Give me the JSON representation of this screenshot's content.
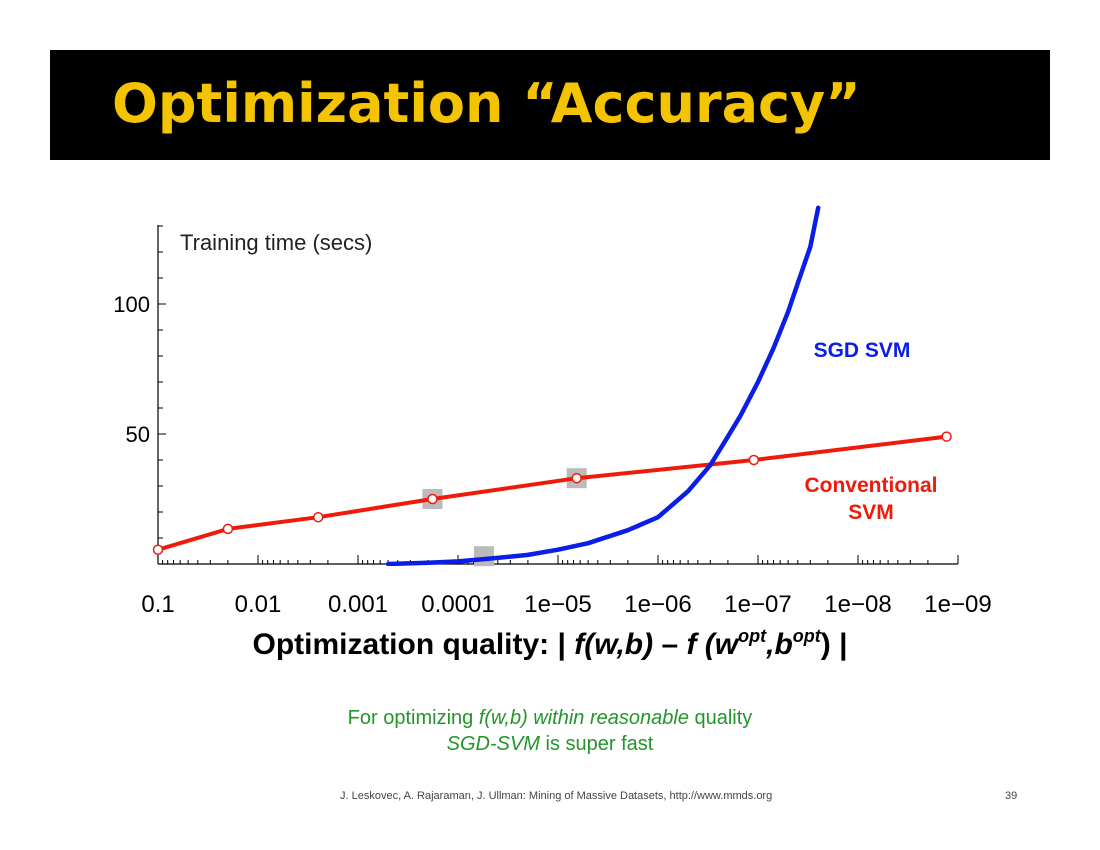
{
  "slide": {
    "title": "Optimization “Accuracy”",
    "xaxis_title": {
      "prefix": "Optimization quality: | ",
      "f1": "f(w,b)",
      "dash": " – ",
      "f2": "f (w",
      "sup1": "opt",
      "comma": ",b",
      "sup2": "opt",
      "close": ") |"
    },
    "caption": {
      "l1_a": "For optimizing ",
      "l1_b": "f(w,b) within reasonable",
      "l1_c": " quality",
      "l2_a": "SGD-SVM",
      "l2_b": " is super fast"
    },
    "footer": "J. Leskovec, A. Rajaraman, J. Ullman: Mining of Massive Datasets, http://www.mmds.org",
    "page_number": "39"
  },
  "colors": {
    "title": "#f5c400",
    "sgd": "#0a1ee6",
    "conventional": "#f01a0a",
    "caption": "#22962a"
  },
  "chart_data": {
    "type": "line",
    "title": "",
    "ylabel": "Training time (secs)",
    "xlabel": "Optimization quality: | f(w,b) – f (wopt,bopt) |",
    "x_scale": "log, reversed",
    "x_ticks": [
      "0.1",
      "0.01",
      "0.001",
      "0.0001",
      "1e−05",
      "1e−06",
      "1e−07",
      "1e−08",
      "1e−09"
    ],
    "x_tick_values": [
      0.1,
      0.01,
      0.001,
      0.0001,
      1e-05,
      1e-06,
      1e-07,
      1e-08,
      1e-09
    ],
    "y_ticks": [
      "50",
      "100"
    ],
    "y_tick_values": [
      50,
      100
    ],
    "ylim": [
      0,
      130
    ],
    "grid": false,
    "series": [
      {
        "name": "Conventional SVM",
        "label_lines": [
          "Conventional",
          "SVM"
        ],
        "color": "#f01a0a",
        "marker": "open-circle",
        "x": [
          0.1,
          0.02,
          0.0025,
          0.00018,
          6.5e-06,
          1.1e-07,
          1.3e-09
        ],
        "y": [
          5.5,
          13.5,
          18,
          25,
          33,
          40,
          49
        ]
      },
      {
        "name": "SGD SVM",
        "label_lines": [
          "SGD SVM"
        ],
        "color": "#0a1ee6",
        "marker": "none",
        "x": [
          0.0005,
          0.0002,
          0.0001,
          5e-05,
          2e-05,
          1e-05,
          5e-06,
          2e-06,
          1e-06,
          5e-07,
          3e-07,
          2e-07,
          1.5e-07,
          1e-07,
          7e-08,
          5e-08,
          4e-08,
          3e-08,
          2.5e-08
        ],
        "y": [
          0,
          0.5,
          1,
          2,
          3.5,
          5.5,
          8,
          13,
          18,
          28,
          38,
          49,
          57,
          70,
          83,
          97,
          108,
          122,
          137
        ]
      }
    ],
    "highlight_markers": {
      "shape": "gray square",
      "x": [
        0.00018,
        5.5e-05,
        6.5e-06
      ],
      "y": [
        25,
        3,
        33
      ]
    }
  }
}
